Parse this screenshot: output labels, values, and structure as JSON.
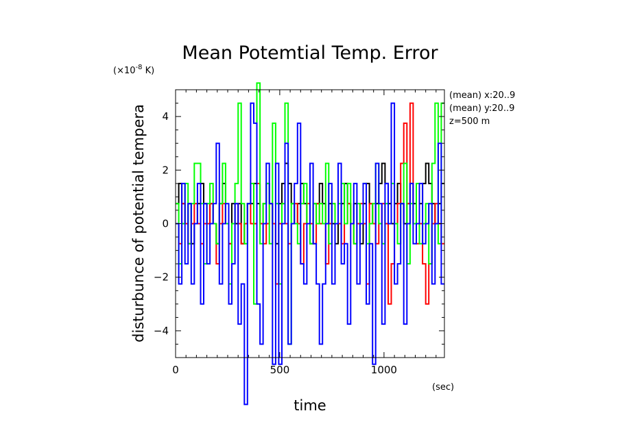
{
  "chart_data": {
    "type": "line",
    "title": "Mean Potemtial Temp. Error",
    "xlabel": "time",
    "x_unit": "(sec)",
    "ylabel": "disturbunce of potential tempera",
    "y_unit_prefix": "(×10",
    "y_unit_exponent": "-8",
    "y_unit_suffix": " K)",
    "xlim": [
      0,
      1290
    ],
    "ylim": [
      -5,
      5
    ],
    "xticks": [
      0,
      500,
      1000
    ],
    "xtick_labels": [
      "0",
      "500",
      "1000"
    ],
    "yticks": [
      -4,
      -2,
      0,
      2,
      4
    ],
    "ytick_labels": [
      "−4",
      "−2",
      "0",
      "2",
      "4"
    ],
    "annotations": [
      "(mean) x:20..9",
      "(mean) y:20..9",
      "z=500 m"
    ],
    "grid": false,
    "step": 15,
    "series": [
      {
        "color": "#000000",
        "values": [
          0.75,
          1.5,
          0.75,
          0.0,
          0.75,
          -0.75,
          0.0,
          0.75,
          1.5,
          0.75,
          0.0,
          0.75,
          0.0,
          -0.75,
          0.75,
          1.5,
          0.0,
          -0.75,
          0.75,
          0.0,
          0.75,
          -0.75,
          0.0,
          0.75,
          0.75,
          1.5,
          0.75,
          0.0,
          0.75,
          1.5,
          0.75,
          0.0,
          -0.75,
          0.75,
          1.5,
          2.25,
          1.5,
          0.75,
          0.0,
          0.75,
          1.5,
          0.75,
          0.0,
          -0.75,
          0.75,
          0.75,
          1.5,
          0.75,
          0.0,
          0.75,
          0.0,
          -0.75,
          0.0,
          0.75,
          1.5,
          0.75,
          0.0,
          0.75,
          0.0,
          -0.75,
          0.75,
          1.5,
          0.75,
          0.0,
          0.75,
          1.5,
          2.25,
          1.5,
          0.75,
          0.0,
          0.75,
          1.5,
          0.75,
          0.0,
          0.75,
          1.5,
          0.75,
          0.0,
          0.75,
          1.5,
          2.25,
          1.5,
          0.75,
          0.0,
          0.75,
          1.5
        ]
      },
      {
        "color": "#ff0000",
        "values": [
          0.0,
          -0.75,
          0.75,
          0.0,
          -0.75,
          0.0,
          0.75,
          0.0,
          -0.75,
          0.0,
          0.0,
          0.75,
          0.0,
          -1.5,
          0.0,
          0.75,
          0.0,
          -0.75,
          0.0,
          0.75,
          0.0,
          -0.75,
          0.0,
          0.75,
          0.0,
          0.0,
          1.5,
          0.0,
          -0.75,
          0.0,
          0.75,
          0.0,
          -2.25,
          0.0,
          0.75,
          0.0,
          -0.75,
          0.0,
          0.75,
          0.0,
          -1.5,
          0.0,
          0.75,
          0.0,
          -0.75,
          0.75,
          0.0,
          0.0,
          -1.5,
          0.0,
          0.75,
          0.0,
          0.0,
          -0.75,
          0.0,
          0.75,
          0.0,
          -0.75,
          0.0,
          0.75,
          0.0,
          -2.25,
          0.75,
          0.0,
          -0.75,
          0.0,
          0.75,
          0.0,
          -3.0,
          -1.5,
          0.0,
          0.75,
          2.25,
          3.75,
          0.75,
          4.5,
          0.0,
          -0.75,
          0.0,
          -1.5,
          -3.0,
          -1.5,
          0.0,
          0.75,
          0.0,
          -0.75
        ]
      },
      {
        "color": "#00ff00",
        "values": [
          0.75,
          -1.5,
          0.0,
          1.5,
          -0.75,
          0.75,
          2.25,
          2.25,
          0.75,
          -1.5,
          0.75,
          1.5,
          0.0,
          -0.75,
          0.75,
          2.25,
          0.0,
          -2.25,
          0.0,
          1.5,
          4.5,
          0.75,
          -0.75,
          0.75,
          1.5,
          -3.0,
          5.25,
          -0.75,
          0.75,
          1.5,
          -0.75,
          3.75,
          0.75,
          -2.25,
          0.75,
          4.5,
          -4.5,
          0.75,
          0.0,
          -0.75,
          0.75,
          1.5,
          0.0,
          -0.75,
          0.75,
          0.0,
          0.75,
          0.0,
          2.25,
          -0.75,
          0.75,
          0.0,
          0.75,
          1.5,
          0.0,
          1.5,
          0.0,
          -0.75,
          0.75,
          0.0,
          1.5,
          -0.75,
          0.0,
          0.75,
          2.25,
          0.0,
          -0.75,
          0.75,
          0.0,
          1.5,
          0.0,
          -0.75,
          0.75,
          2.25,
          -1.5,
          0.75,
          0.0,
          1.5,
          -0.75,
          0.0,
          0.75,
          -1.5,
          2.25,
          4.5,
          -0.75,
          4.5
        ]
      },
      {
        "color": "#0000ff",
        "values": [
          0.0,
          -2.25,
          1.5,
          -1.5,
          0.75,
          -2.25,
          0.0,
          1.5,
          -3.0,
          0.75,
          -1.5,
          0.0,
          0.75,
          3.0,
          -2.25,
          0.0,
          0.75,
          -3.0,
          -1.5,
          0.75,
          -3.75,
          -2.25,
          -6.75,
          0.75,
          4.5,
          3.75,
          -3.0,
          -4.5,
          0.0,
          2.25,
          0.75,
          -5.25,
          2.25,
          -5.25,
          0.0,
          3.0,
          -4.5,
          0.0,
          1.5,
          3.75,
          -1.5,
          -2.25,
          0.0,
          2.25,
          -0.75,
          -2.25,
          -4.5,
          -2.25,
          0.0,
          1.5,
          -2.25,
          0.0,
          2.25,
          -1.5,
          -0.75,
          -3.75,
          0.0,
          1.5,
          -2.25,
          0.0,
          1.5,
          -3.0,
          -0.75,
          -5.25,
          2.25,
          0.75,
          -3.75,
          1.5,
          0.0,
          4.5,
          -2.25,
          -1.5,
          0.75,
          -3.75,
          0.0,
          1.5,
          -0.75,
          0.0,
          1.5,
          -0.75,
          0.0,
          0.75,
          -2.25,
          0.0,
          3.0,
          -2.25
        ]
      }
    ]
  }
}
